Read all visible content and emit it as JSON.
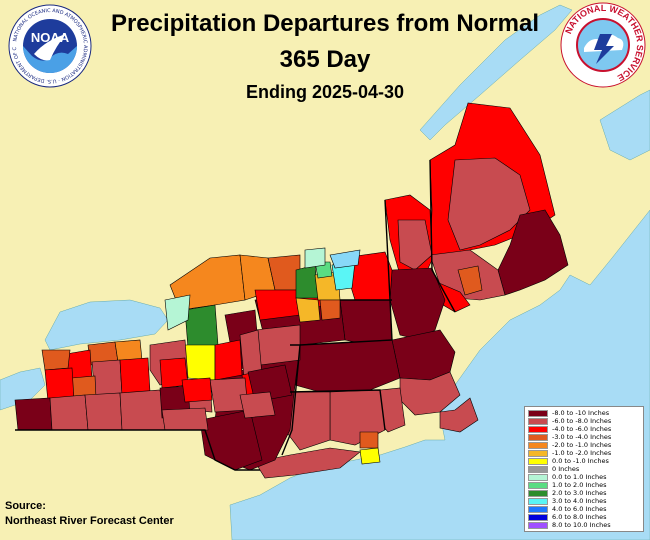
{
  "header": {
    "title": "Precipitation Departures from Normal",
    "period": "365 Day",
    "ending": "Ending 2025-04-30"
  },
  "logos": {
    "noaa_text": "NOAA",
    "noaa_ring_text": "NATIONAL OCEANIC AND ATMOSPHERIC ADMINISTRATION · U.S. DEPARTMENT OF COMMERCE",
    "nws_ring_text": "NATIONAL WEATHER SERVICE"
  },
  "legend": {
    "items": [
      {
        "label": "-8.0 to -10 Inches",
        "color": "#7a0018"
      },
      {
        "label": "-6.0 to -8.0 Inches",
        "color": "#c84b50"
      },
      {
        "label": "-4.0 to -6.0 Inches",
        "color": "#ff0000"
      },
      {
        "label": "-3.0 to -4.0 Inches",
        "color": "#e05a1e"
      },
      {
        "label": "-2.0 to -1.0 Inches",
        "color": "#f5871e"
      },
      {
        "label": "-1.0 to -2.0 Inches",
        "color": "#f5b728"
      },
      {
        "label": "0.0 to -1.0 Inches",
        "color": "#ffff00"
      },
      {
        "label": "0 Inches",
        "color": "#999999"
      },
      {
        "label": "0.0 to 1.0 Inches",
        "color": "#b5f5d5"
      },
      {
        "label": "1.0 to 2.0 Inches",
        "color": "#5adc82"
      },
      {
        "label": "2.0 to 3.0 Inches",
        "color": "#2d8c2d"
      },
      {
        "label": "3.0 to 4.0 Inches",
        "color": "#5af5f5"
      },
      {
        "label": "4.0 to 6.0 Inches",
        "color": "#1e78ff"
      },
      {
        "label": "6.0 to 8.0 Inches",
        "color": "#0000dc"
      },
      {
        "label": "8.0 to 10.0 Inches",
        "color": "#a050ff"
      }
    ]
  },
  "source": {
    "label": "Source:",
    "name": "Northeast River Forecast Center"
  },
  "colors": {
    "land": "#f7f0b4",
    "water": "#a8dcf5",
    "border": "#000000"
  }
}
